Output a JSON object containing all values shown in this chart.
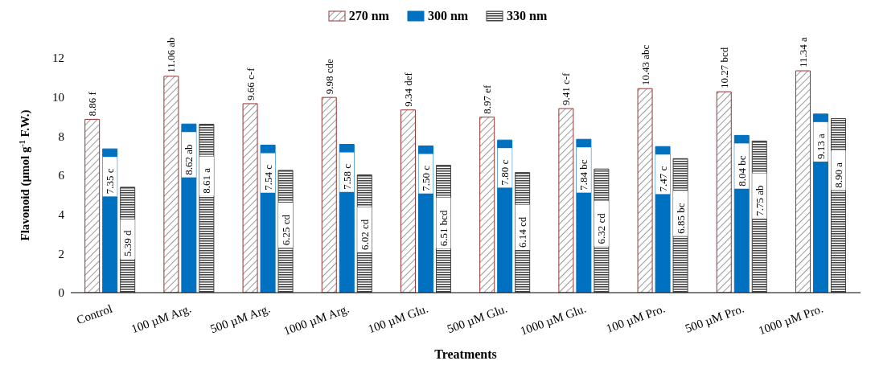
{
  "chart_data": {
    "type": "bar",
    "xlabel": "Treatments",
    "ylabel": "Flavonoid (µmol g$^{-1}$ F.W.)",
    "categories": [
      "Control",
      "100 µM Arg.",
      "500 µM Arg.",
      "1000 µM Arg.",
      "100 µM Glu.",
      "500 µM Glu.",
      "1000 µM Glu.",
      "100 µM Pro.",
      "500 µM Pro.",
      "1000 µM Pro."
    ],
    "series": [
      {
        "name": "270 nm",
        "color": "#943634",
        "values": [
          8.86,
          11.06,
          9.66,
          9.98,
          9.34,
          8.97,
          9.41,
          10.43,
          10.27,
          11.34
        ],
        "value_labels": [
          "8.86 f",
          "11.06 ab",
          "9.66 c-f",
          "9.98 cde",
          "9.34 def",
          "8.97 ef",
          "9.41 c-f",
          "10.43 abc",
          "10.27 bcd",
          "11.34 a"
        ]
      },
      {
        "name": "300 nm",
        "color": "#0070c0",
        "values": [
          7.35,
          8.62,
          7.54,
          7.58,
          7.5,
          7.8,
          7.84,
          7.47,
          8.04,
          9.13
        ],
        "value_labels": [
          "7.35 c",
          "8.62 ab",
          "7.54 c",
          "7.58 c",
          "7.50 c",
          "7.80 c",
          "7.84 bc",
          "7.47 c",
          "8.04 bc",
          "9.13 a"
        ]
      },
      {
        "name": "330 nm",
        "color": "#404040",
        "values": [
          5.39,
          8.61,
          6.25,
          6.02,
          6.51,
          6.14,
          6.32,
          6.85,
          7.75,
          8.9
        ],
        "value_labels": [
          "5.39 d",
          "8.61 a",
          "6.25 cd",
          "6.02 cd",
          "6.51 bcd",
          "6.14 cd",
          "6.32 cd",
          "6.85 bc",
          "7.75 ab",
          "8.90 a"
        ]
      }
    ],
    "ylim": [
      0,
      12
    ],
    "yticks": [
      0,
      2,
      4,
      6,
      8,
      10,
      12
    ],
    "grid": false,
    "legend": "top"
  }
}
